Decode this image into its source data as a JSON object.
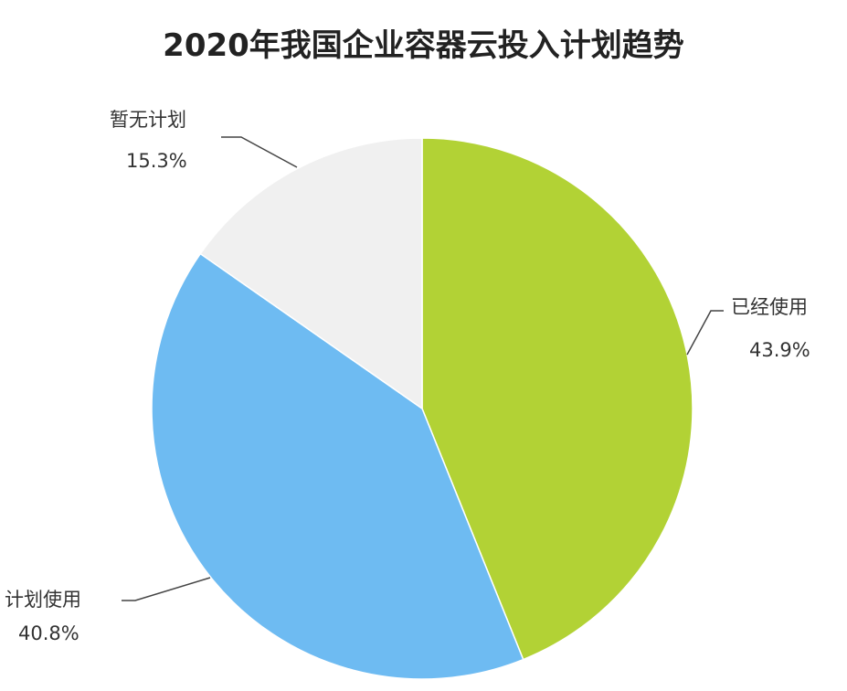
{
  "chart_data": {
    "type": "pie",
    "title": "2020年我国企业容器云投入计划趋势",
    "start_angle": "12 o'clock",
    "direction": "clockwise",
    "slices": [
      {
        "label": "已经使用",
        "value": 43.9,
        "value_label": "43.9%",
        "color": "#b2d235"
      },
      {
        "label": "计划使用",
        "value": 40.8,
        "value_label": "40.8%",
        "color": "#6ebbf2"
      },
      {
        "label": "暂无计划",
        "value": 15.3,
        "value_label": "15.3%",
        "color": "#f0f0f0"
      }
    ]
  }
}
